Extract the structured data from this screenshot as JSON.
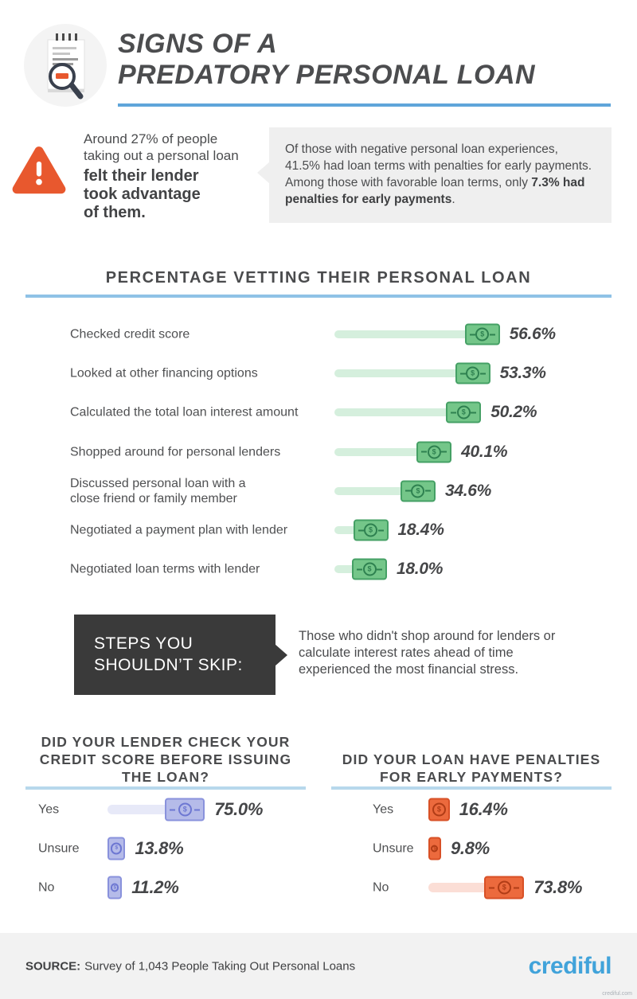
{
  "header": {
    "title": "SIGNS OF A\nPREDATORY PERSONAL LOAN",
    "icon": "document-magnifier-icon"
  },
  "warning": {
    "lead_regular": "Around 27% of people taking out a personal loan",
    "lead_bold": "felt their lender took advantage of them.",
    "callout_pre": "Of those with negative personal loan experiences, 41.5% had loan terms with penalties for early payments. Among those with favorable loan terms, only ",
    "callout_bold": "7.3% had penalties for early payments",
    "callout_post": "."
  },
  "steps": {
    "title": "STEPS YOU\nSHOULDN’T SKIP:",
    "body": "Those who didn't shop around for lenders or calculate interest rates ahead of time experienced the most financial stress."
  },
  "chart_data": [
    {
      "id": "vetting",
      "type": "bar",
      "orientation": "horizontal",
      "title": "PERCENTAGE VETTING THEIR PERSONAL LOAN",
      "categories": [
        "Checked credit score",
        "Looked at other financing options",
        "Calculated the total loan interest amount",
        "Shopped around for personal lenders",
        "Discussed personal loan with a\nclose friend or family member",
        "Negotiated a payment plan with lender",
        "Negotiated loan terms with lender"
      ],
      "values": [
        56.6,
        53.3,
        50.2,
        40.1,
        34.6,
        18.4,
        18.0
      ],
      "value_suffix": "%",
      "xlim": [
        0,
        100
      ],
      "colors": {
        "track": "#d5efdd",
        "fill": "#74c689",
        "border": "#45a065",
        "detail": "#2e8150"
      }
    },
    {
      "id": "credit-check",
      "type": "bar",
      "orientation": "horizontal",
      "title": "DID YOUR LENDER CHECK YOUR\nCREDIT SCORE BEFORE ISSUING\nTHE LOAN?",
      "categories": [
        "Yes",
        "Unsure",
        "No"
      ],
      "values": [
        75.0,
        13.8,
        11.2
      ],
      "value_suffix": "%",
      "xlim": [
        0,
        100
      ],
      "colors": {
        "track": "#e7e9f8",
        "fill": "#b5bbe9",
        "border": "#8992dc",
        "detail": "#6d77d2"
      }
    },
    {
      "id": "penalties",
      "type": "bar",
      "orientation": "horizontal",
      "title": "DID YOUR LOAN HAVE PENALTIES\nFOR EARLY PAYMENTS?",
      "categories": [
        "Yes",
        "Unsure",
        "No"
      ],
      "values": [
        16.4,
        9.8,
        73.8
      ],
      "value_suffix": "%",
      "xlim": [
        0,
        100
      ],
      "colors": {
        "track": "#fbded6",
        "fill": "#ec6a3d",
        "border": "#d85026",
        "detail": "#b03c16"
      }
    }
  ],
  "footer": {
    "source_label": "SOURCE:",
    "source_text": "Survey of 1,043 People Taking Out Personal Loans",
    "logo": "crediful",
    "watermark": "crediful.com"
  },
  "colors": {
    "accent_blue": "#5fa5da",
    "underline_blue": "#8fc2e6",
    "warning_orange": "#e8582e",
    "dark_text": "#4a4b4d",
    "callout_bg": "#efefef",
    "steps_bg": "#3a3a3a",
    "footer_bg": "#f2f2f2",
    "logo_blue": "#41a3da"
  }
}
